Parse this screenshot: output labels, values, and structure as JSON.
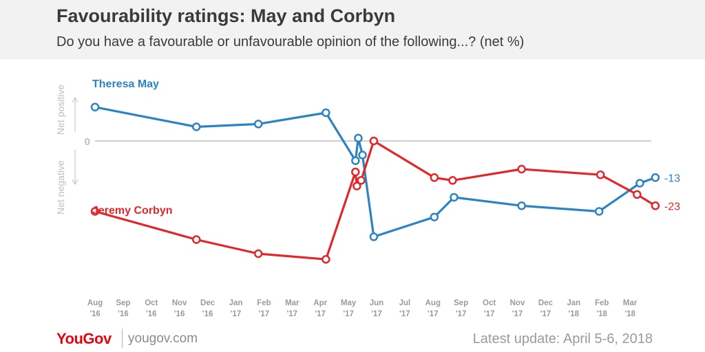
{
  "header": {
    "title": "Favourability ratings: May and Corbyn",
    "subtitle": "Do you have a favourable or unfavourable opinion of the following...? (net %)"
  },
  "footer": {
    "brand": "YouGov",
    "url": "yougov.com",
    "update": "Latest update: April 5-6, 2018"
  },
  "colors": {
    "may": "#2b83c4",
    "corbyn": "#e2262a",
    "axis": "#bdbdbd",
    "text": "#3a3a3a"
  },
  "chart_data": {
    "type": "line",
    "title": "Favourability ratings: May and Corbyn",
    "ylabel": "net %",
    "yaxis": {
      "zero_label": "0",
      "positive_label": "Net positive",
      "negative_label": "Net negative"
    },
    "ylim": [
      -50,
      20
    ],
    "months": [
      {
        "m": "Aug",
        "y": "'16"
      },
      {
        "m": "Sep",
        "y": "'16"
      },
      {
        "m": "Oct",
        "y": "'16"
      },
      {
        "m": "Nov",
        "y": "'16"
      },
      {
        "m": "Dec",
        "y": "'16"
      },
      {
        "m": "Jan",
        "y": "'17"
      },
      {
        "m": "Feb",
        "y": "'17"
      },
      {
        "m": "Mar",
        "y": "'17"
      },
      {
        "m": "Apr",
        "y": "'17"
      },
      {
        "m": "May",
        "y": "'17"
      },
      {
        "m": "Jun",
        "y": "'17"
      },
      {
        "m": "Jul",
        "y": "'17"
      },
      {
        "m": "Aug",
        "y": "'17"
      },
      {
        "m": "Sep",
        "y": "'17"
      },
      {
        "m": "Oct",
        "y": "'17"
      },
      {
        "m": "Nov",
        "y": "'17"
      },
      {
        "m": "Dec",
        "y": "'17"
      },
      {
        "m": "Jan",
        "y": "'18"
      },
      {
        "m": "Feb",
        "y": "'18"
      },
      {
        "m": "Mar",
        "y": "'18"
      }
    ],
    "series": [
      {
        "name": "Theresa May",
        "color": "#2b83c4",
        "end_label": "-13",
        "points": [
          {
            "x": 0.0,
            "y": 12
          },
          {
            "x": 3.6,
            "y": 5
          },
          {
            "x": 5.8,
            "y": 6
          },
          {
            "x": 8.2,
            "y": 10
          },
          {
            "x": 9.25,
            "y": -7
          },
          {
            "x": 9.35,
            "y": 1
          },
          {
            "x": 9.5,
            "y": -5
          },
          {
            "x": 9.9,
            "y": -34
          },
          {
            "x": 12.05,
            "y": -27
          },
          {
            "x": 12.75,
            "y": -20
          },
          {
            "x": 15.15,
            "y": -23
          },
          {
            "x": 17.9,
            "y": -25
          },
          {
            "x": 19.35,
            "y": -15
          },
          {
            "x": 19.9,
            "y": -13
          }
        ]
      },
      {
        "name": "Jeremy Corbyn",
        "color": "#e2262a",
        "end_label": "-23",
        "points": [
          {
            "x": 0.0,
            "y": -25
          },
          {
            "x": 3.6,
            "y": -35
          },
          {
            "x": 5.8,
            "y": -40
          },
          {
            "x": 8.2,
            "y": -42
          },
          {
            "x": 9.25,
            "y": -11
          },
          {
            "x": 9.3,
            "y": -16
          },
          {
            "x": 9.45,
            "y": -14
          },
          {
            "x": 9.9,
            "y": 0
          },
          {
            "x": 12.05,
            "y": -13
          },
          {
            "x": 12.7,
            "y": -14
          },
          {
            "x": 15.15,
            "y": -10
          },
          {
            "x": 17.95,
            "y": -12
          },
          {
            "x": 19.25,
            "y": -19
          },
          {
            "x": 19.9,
            "y": -23
          }
        ]
      }
    ]
  }
}
